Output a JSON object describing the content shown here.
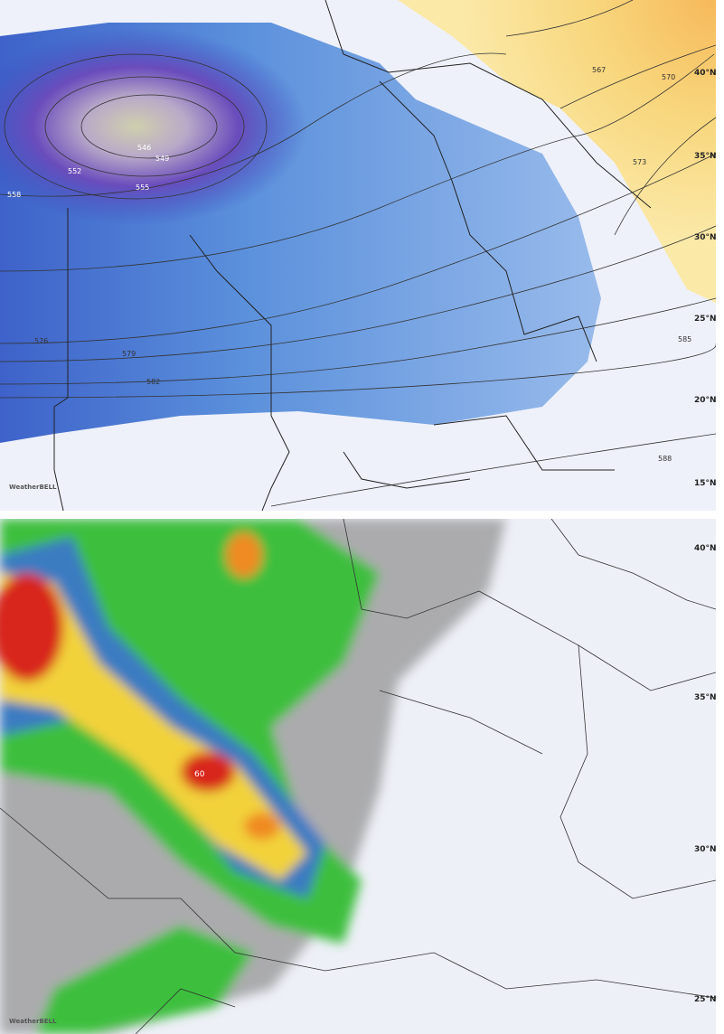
{
  "top_map": {
    "contour_labels": [
      "546",
      "549",
      "552",
      "555",
      "558",
      "567",
      "570",
      "573",
      "576",
      "579",
      "582",
      "585",
      "588"
    ],
    "latitude_labels": [
      "40°N",
      "35°N",
      "30°N",
      "25°N",
      "20°N",
      "15°N"
    ],
    "logo": "WeatherBELL",
    "colors": {
      "low_center": "#c9c9a8",
      "trough": "#5a3fb0",
      "blue": "#4f86d8",
      "light_blue": "#a9c6ef",
      "ridge": "#f7d27a",
      "background": "#eef1fa"
    }
  },
  "bottom_map": {
    "latitude_labels": [
      "40°N",
      "35°N",
      "30°N",
      "25°N"
    ],
    "max_label": "60",
    "logo": "WeatherBELL",
    "colors": {
      "gray": "#8f8f8f",
      "green": "#3cbf3c",
      "blue": "#3a6fd8",
      "yellow": "#f2d23a",
      "orange": "#f08a24",
      "red": "#d8281c"
    }
  }
}
